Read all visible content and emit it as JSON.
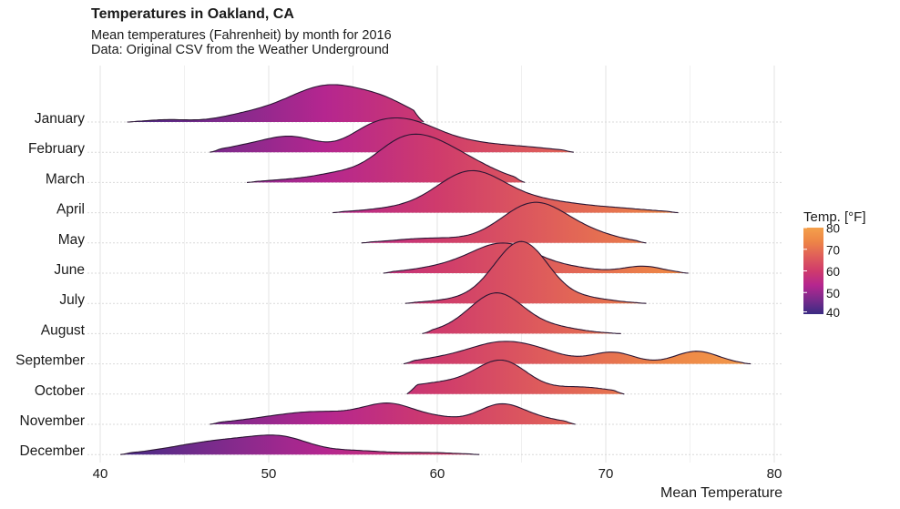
{
  "chart_data": {
    "type": "ridgeline",
    "title": "Temperatures in Oakland, CA",
    "subtitle": "Mean temperatures (Fahrenheit) by month for 2016",
    "caption": "Data: Original CSV from the Weather Underground",
    "xlabel": "Mean Temperature",
    "ylabel": "",
    "xlim": [
      40,
      80
    ],
    "x_ticks": [
      40,
      50,
      60,
      70,
      80
    ],
    "grid": true,
    "legend": {
      "title": "Temp. [°F]",
      "position": "right",
      "ticks": [
        80,
        70,
        60,
        50,
        40
      ],
      "range": [
        40,
        80
      ],
      "colors": [
        "#3a2b83",
        "#7a2b8c",
        "#b5268f",
        "#cf3b6c",
        "#df5e5a",
        "#ed8447",
        "#f4a04b"
      ]
    },
    "series": [
      {
        "name": "January",
        "range": [
          41.6,
          59.2
        ],
        "peaks": [
          [
            44,
            0.06,
            1.2
          ],
          [
            48.5,
            0.12,
            1.6
          ],
          [
            53.6,
            0.96,
            2.6
          ],
          [
            57.2,
            0.25,
            1.5
          ]
        ]
      },
      {
        "name": "February",
        "range": [
          46.5,
          68.1
        ],
        "peaks": [
          [
            48.5,
            0.12,
            1.4
          ],
          [
            51.3,
            0.4,
            1.6
          ],
          [
            55.8,
            0.25,
            1.3
          ],
          [
            58.0,
            0.8,
            2.0
          ],
          [
            62.0,
            0.2,
            2.0
          ],
          [
            65.5,
            0.1,
            1.8
          ]
        ]
      },
      {
        "name": "March",
        "range": [
          48.7,
          65.2
        ],
        "peaks": [
          [
            51.0,
            0.06,
            1.4
          ],
          [
            54.0,
            0.2,
            1.5
          ],
          [
            57.5,
            0.5,
            1.6
          ],
          [
            59.7,
            0.98,
            2.2
          ],
          [
            63.0,
            0.12,
            1.5
          ]
        ]
      },
      {
        "name": "April",
        "range": [
          53.8,
          74.3
        ],
        "peaks": [
          [
            57.5,
            0.1,
            2.0
          ],
          [
            61.9,
            1.0,
            2.0
          ],
          [
            66.0,
            0.3,
            2.6
          ],
          [
            71.0,
            0.08,
            2.0
          ]
        ]
      },
      {
        "name": "May",
        "range": [
          55.5,
          72.4
        ],
        "peaks": [
          [
            59.5,
            0.12,
            2.0
          ],
          [
            65.8,
            1.05,
            2.0
          ],
          [
            69.5,
            0.15,
            1.6
          ]
        ]
      },
      {
        "name": "June",
        "range": [
          56.8,
          74.9
        ],
        "peaks": [
          [
            60.5,
            0.15,
            2.0
          ],
          [
            64.0,
            0.75,
            1.9
          ],
          [
            68.0,
            0.12,
            1.6
          ],
          [
            72.2,
            0.18,
            1.2
          ]
        ]
      },
      {
        "name": "July",
        "range": [
          58.1,
          72.4
        ],
        "peaks": [
          [
            61.5,
            0.1,
            1.8
          ],
          [
            65.0,
            1.6,
            1.6
          ],
          [
            69.0,
            0.12,
            1.5
          ]
        ]
      },
      {
        "name": "August",
        "range": [
          59.1,
          70.9
        ],
        "peaks": [
          [
            60.5,
            0.05,
            1.2
          ],
          [
            63.5,
            1.05,
            1.6
          ],
          [
            67.0,
            0.15,
            1.6
          ]
        ]
      },
      {
        "name": "September",
        "range": [
          58.0,
          78.6
        ],
        "peaks": [
          [
            60.0,
            0.1,
            1.6
          ],
          [
            63.8,
            0.55,
            2.0
          ],
          [
            66.5,
            0.15,
            1.5
          ],
          [
            70.4,
            0.3,
            1.3
          ],
          [
            75.4,
            0.33,
            1.3
          ]
        ]
      },
      {
        "name": "October",
        "range": [
          58.2,
          71.1
        ],
        "peaks": [
          [
            60.5,
            0.3,
            2.6
          ],
          [
            63.9,
            0.75,
            1.5
          ],
          [
            68.5,
            0.18,
            1.8
          ]
        ]
      },
      {
        "name": "November",
        "range": [
          46.5,
          68.2
        ],
        "peaks": [
          [
            49.5,
            0.1,
            2.0
          ],
          [
            53.0,
            0.3,
            2.2
          ],
          [
            57.2,
            0.5,
            1.6
          ],
          [
            60.2,
            0.12,
            1.2
          ],
          [
            63.8,
            0.52,
            1.4
          ],
          [
            66.5,
            0.1,
            1.4
          ]
        ]
      },
      {
        "name": "December",
        "range": [
          41.2,
          62.5
        ],
        "peaks": [
          [
            45.5,
            0.2,
            2.2
          ],
          [
            48.5,
            0.28,
            2.0
          ],
          [
            51.0,
            0.33,
            1.6
          ],
          [
            55.0,
            0.1,
            1.8
          ],
          [
            59.5,
            0.05,
            1.6
          ]
        ]
      }
    ]
  }
}
